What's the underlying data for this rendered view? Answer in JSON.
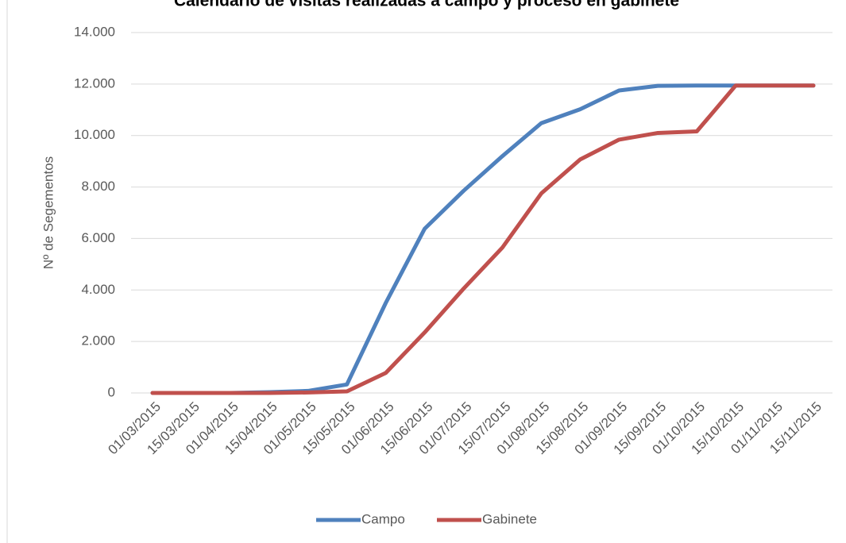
{
  "chart_data": {
    "type": "line",
    "title": "Calendario de visitas realizadas a campo y proceso en gabinete",
    "y_label": "Nº de Segementos",
    "categories": [
      "01/03/2015",
      "15/03/2015",
      "01/04/2015",
      "15/04/2015",
      "01/05/2015",
      "15/05/2015",
      "01/06/2015",
      "15/06/2015",
      "01/07/2015",
      "15/07/2015",
      "01/08/2015",
      "15/08/2015",
      "01/09/2015",
      "15/09/2015",
      "01/10/2015",
      "15/10/2015",
      "01/11/2015",
      "15/11/2015"
    ],
    "series": [
      {
        "name": "Campo",
        "color": "#4f81bd",
        "values": [
          0,
          0,
          0,
          30,
          80,
          330,
          3500,
          6380,
          7850,
          9200,
          10480,
          11020,
          11750,
          11930,
          11940,
          11940,
          11940,
          11940
        ]
      },
      {
        "name": "Gabinete",
        "color": "#c0504d",
        "values": [
          0,
          0,
          0,
          0,
          20,
          60,
          780,
          2350,
          4050,
          5650,
          7750,
          9070,
          9840,
          10100,
          10160,
          11940,
          11940,
          11940
        ]
      }
    ],
    "ylim": [
      0,
      14000
    ],
    "yticks": [
      0,
      {
        "value": 2000,
        "label": "2.000"
      },
      {
        "value": 4000,
        "label": "4.000"
      },
      {
        "value": 6000,
        "label": "6.000"
      },
      {
        "value": 8000,
        "label": "8.000"
      },
      {
        "value": 10000,
        "label": "10.000"
      },
      {
        "value": 12000,
        "label": "12.000"
      },
      {
        "value": 14000,
        "label": "14.000"
      }
    ],
    "grid": true,
    "legend": "bottom"
  }
}
